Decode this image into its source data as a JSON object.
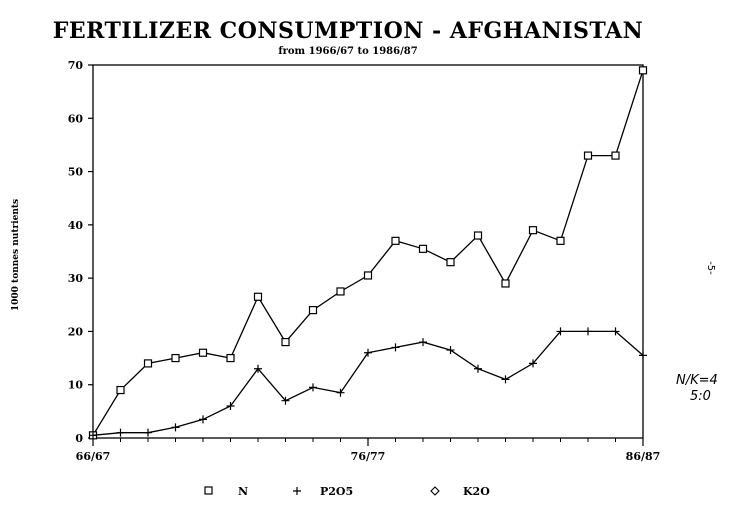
{
  "page_marker": "-5-",
  "margin_note": [
    "N/K=4",
    "5:0"
  ],
  "chart_data": {
    "type": "line",
    "title": "FERTILIZER CONSUMPTION  -  AFGHANISTAN",
    "subtitle": "from 1966/67 to 1986/87",
    "ylabel": "1000 tonnes nutrients",
    "xlabel": "",
    "ylim": [
      0,
      70
    ],
    "yticks": [
      "0",
      "10",
      "20",
      "30",
      "40",
      "50",
      "60",
      "70"
    ],
    "x_tick_labels": [
      {
        "index": 0,
        "label": "66/67"
      },
      {
        "index": 10,
        "label": "76/77"
      },
      {
        "index": 20,
        "label": "86/87"
      }
    ],
    "grid": false,
    "legend_position": "bottom",
    "series": [
      {
        "name": "N",
        "marker": "square",
        "values": [
          0.5,
          9,
          14,
          15,
          16,
          15,
          26.5,
          18,
          24,
          27.5,
          30.5,
          37,
          35.5,
          33,
          38,
          29,
          39,
          37,
          53,
          53,
          69
        ]
      },
      {
        "name": "P2O5",
        "marker": "plus",
        "values": [
          0.5,
          1,
          1,
          2,
          3.5,
          6,
          13,
          7,
          9.5,
          8.5,
          16,
          17,
          18,
          16.5,
          13,
          11,
          14,
          20,
          20,
          20,
          15.5
        ]
      },
      {
        "name": "K2O",
        "marker": "diamond",
        "values": []
      }
    ]
  }
}
